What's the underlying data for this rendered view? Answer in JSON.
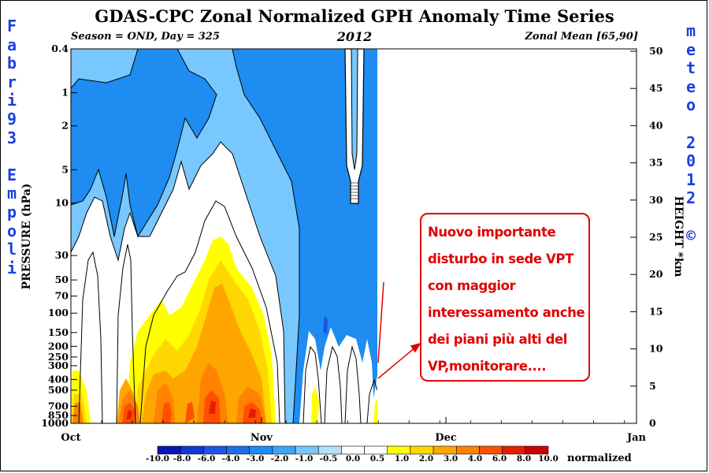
{
  "title": "GDAS-CPC Zonal Normalized GPH Anomaly Time Series",
  "subtitle_left": "Season = OND, Day = 325",
  "subtitle_center": "2012",
  "subtitle_right": "Zonal Mean [65,90]",
  "left_signature": [
    "F",
    "a",
    "b",
    "r",
    "i",
    "9",
    "3",
    "",
    "E",
    "m",
    "p",
    "o",
    "l",
    "i"
  ],
  "right_signature": [
    "m",
    "e",
    "t",
    "e",
    "o",
    "",
    "2",
    "0",
    "1",
    "2",
    "",
    "©"
  ],
  "annotation": {
    "lines": [
      "Nuovo importante",
      "disturbo in sede VPT",
      "con maggior",
      "interessamento anche",
      "dei piani più alti del",
      "VP,monitorare...."
    ],
    "color": "#e00000"
  },
  "chart_data": {
    "type": "heatmap",
    "title": "GDAS-CPC Zonal Normalized GPH Anomaly Time Series",
    "xlabel": "",
    "ylabel": "PRESSURE (hPa)",
    "y2label": "HEIGHT *km",
    "x_tick_labels": [
      "Oct",
      "Nov",
      "Dec",
      "Jan"
    ],
    "y_pressure_ticks": [
      "0.4",
      "1",
      "2",
      "5",
      "10",
      "30",
      "50",
      "70",
      "100",
      "150",
      "200",
      "250",
      "300",
      "400",
      "500",
      "700",
      "850",
      "1000"
    ],
    "y_height_ticks": [
      "0",
      "5",
      "10",
      "15",
      "20",
      "25",
      "30",
      "35",
      "40",
      "45",
      "50"
    ],
    "y_scale": "log-pressure",
    "data_end_day": 325,
    "colorbar": {
      "label": "normalized",
      "tick_labels": [
        "-10.0",
        "-8.0",
        "-6.0",
        "-4.0",
        "-3.0",
        "-2.0",
        "-1.0",
        "-0.5",
        "0.0",
        "0.5",
        "1.0",
        "2.0",
        "3.0",
        "4.0",
        "6.0",
        "8.0",
        "10.0"
      ],
      "colors": [
        "#0a14b4",
        "#1437d2",
        "#1e55e6",
        "#1e6ee6",
        "#1e8cf0",
        "#3ca5fa",
        "#78c8ff",
        "#b4e1ff",
        "#ffffff",
        "#ffffff",
        "#ffff00",
        "#ffd700",
        "#ffa500",
        "#ff8200",
        "#ff5000",
        "#e61e00",
        "#c80000"
      ]
    },
    "grid": false
  }
}
